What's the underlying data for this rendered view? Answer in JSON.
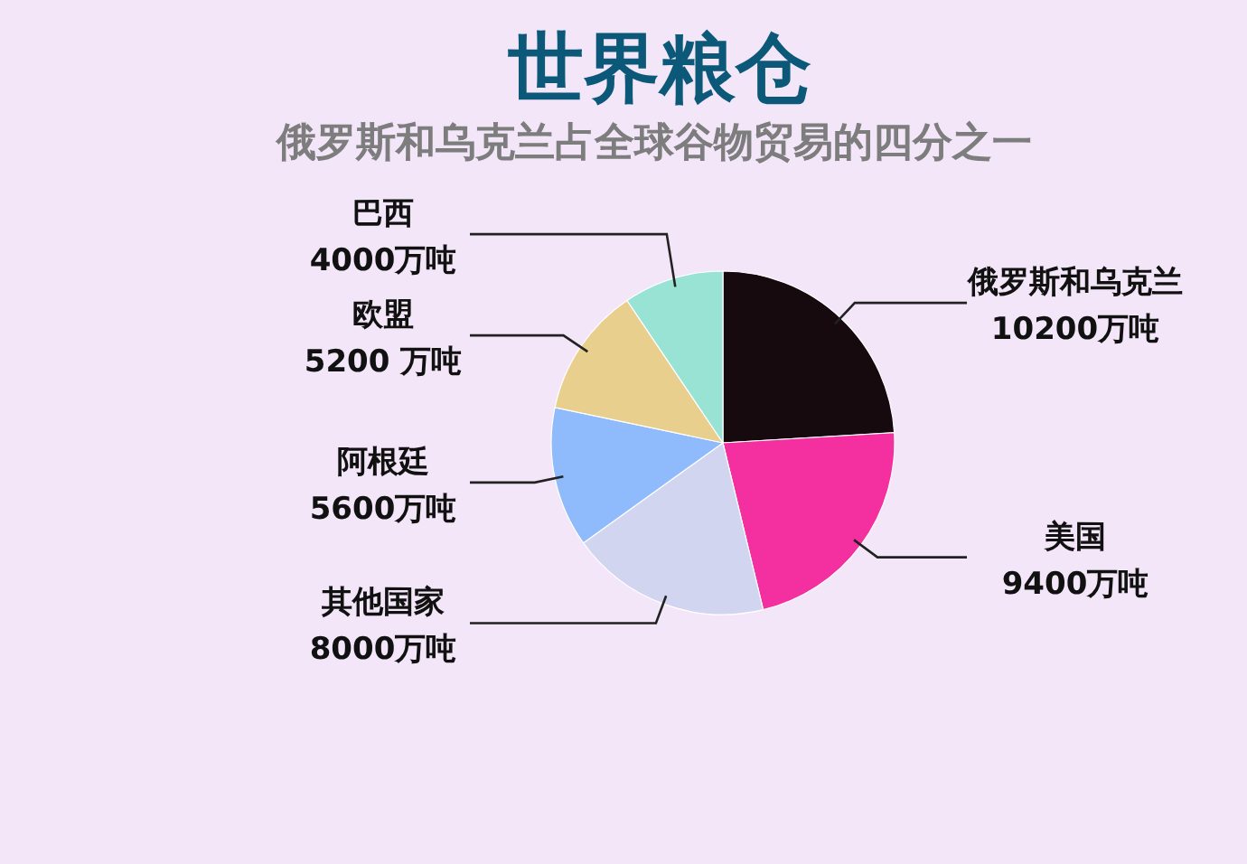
{
  "chart_data": {
    "type": "pie",
    "title": "世界粮仓",
    "subtitle": "俄罗斯和乌克兰占全球谷物贸易的四分之一",
    "categories": [
      "俄罗斯和乌克兰",
      "美国",
      "其他国家",
      "阿根廷",
      "欧盟",
      "巴西"
    ],
    "values": [
      10200,
      9400,
      8000,
      5600,
      5200,
      4000
    ],
    "value_labels": [
      "10200万吨",
      "9400万吨",
      "8000万吨",
      "5600万吨",
      "5200 万吨",
      "4000万吨"
    ],
    "colors": [
      "#170a0e",
      "#f42f9f",
      "#d2d5f0",
      "#8fbafc",
      "#e8cf8d",
      "#98e3d3"
    ]
  }
}
